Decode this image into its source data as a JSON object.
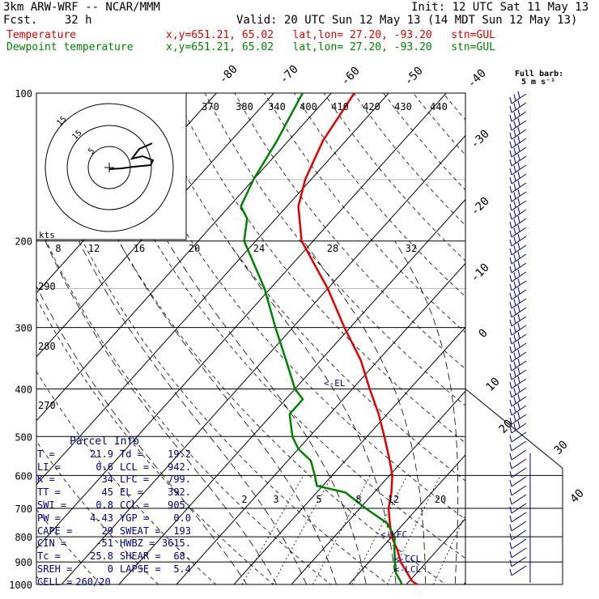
{
  "header": {
    "model": "3km ARW-WRF -- NCAR/MMM",
    "init": "Init: 12 UTC Sat 11 May 13",
    "fcst": "Fcst.    32 h",
    "valid": "Valid: 20 UTC Sun 12 May 13 (14 MDT Sun 12 May 13)",
    "temp_label": "Temperature",
    "temp_loc": "x,y=651.21, 65.02   lat,lon= 27.20, -93.20   stn=GUL",
    "dew_label": "Dewpoint temperature",
    "dew_loc": "x,y=651.21, 65.02   lat,lon= 27.20, -93.20   stn=GUL"
  },
  "colors": {
    "temperature": "#e00000",
    "dewpoint": "#008000",
    "labels": "#000080"
  },
  "parcel": {
    "title": "Parcel Info",
    "rows": [
      {
        "k1": "T",
        "v1": "21.9",
        "k2": "Td",
        "v2": "19.2"
      },
      {
        "k1": "LI",
        "v1": "0.6",
        "k2": "LCL",
        "v2": "942."
      },
      {
        "k1": "K",
        "v1": "34",
        "k2": "LFC",
        "v2": "799."
      },
      {
        "k1": "TT",
        "v1": "45",
        "k2": "EL",
        "v2": "392."
      },
      {
        "k1": "SWI",
        "v1": "0.8",
        "k2": "CCL",
        "v2": "905."
      },
      {
        "k1": "PW",
        "v1": "4.43",
        "k2": "YGP",
        "v2": "0.0"
      },
      {
        "k1": "CAPE",
        "v1": "29",
        "k2": "SWEAT",
        "v2": "193"
      },
      {
        "k1": "CIN",
        "v1": "-51",
        "k2": "HWBZ",
        "v2": "3615."
      },
      {
        "k1": "Tc",
        "v1": "25.8",
        "k2": "SHEAR",
        "v2": "68."
      },
      {
        "k1": "SREH",
        "v1": "0",
        "k2": "LAPSE",
        "v2": "5.4"
      },
      {
        "k1": "CELL",
        "v1": "260/20",
        "k2": "",
        "v2": ""
      }
    ]
  },
  "hodograph": {
    "units": "kts",
    "rings": [
      "5",
      "15",
      "15"
    ]
  },
  "barb_legend": {
    "line1": "Full barb:",
    "line2": "5 m s⁻¹"
  },
  "level_labels": {
    "el": "<-EL",
    "lfc": "<-LFC",
    "ccl": "<-CCL",
    "lcl": "<-LCL"
  },
  "theta_labels": [
    "370",
    "380",
    "340",
    "400",
    "410",
    "420",
    "430",
    "440"
  ],
  "theta_left_labels": [
    "290",
    "280",
    "270"
  ],
  "mixing_top_labels": [
    "8",
    "12",
    "16",
    "20",
    "24",
    "28",
    "32"
  ],
  "mixing_bottom_labels": [
    "2",
    "3",
    "5",
    "8",
    "12",
    "20"
  ],
  "chart_data": {
    "type": "line",
    "title": "",
    "y_axis": "pressure (hPa), log scale",
    "pressure_ticks": [
      100,
      200,
      300,
      400,
      500,
      600,
      700,
      800,
      900,
      1000
    ],
    "isotherm_labels": [
      -80,
      -70,
      -60,
      -50,
      -40,
      -30,
      -20,
      -10,
      0,
      10,
      20,
      30,
      40
    ],
    "series": [
      {
        "name": "Temperature",
        "color": "#e00000",
        "p": [
          1000,
          985,
          950,
          900,
          850,
          800,
          750,
          700,
          650,
          600,
          550,
          500,
          450,
          400,
          350,
          300,
          250,
          200,
          170,
          150,
          125,
          100
        ],
        "t": [
          21.9,
          20.5,
          18.5,
          15.5,
          13,
          10,
          7.5,
          5,
          3,
          0.5,
          -3,
          -7,
          -11.5,
          -17,
          -23,
          -31,
          -40,
          -52,
          -58,
          -61,
          -64,
          -66
        ]
      },
      {
        "name": "Dewpoint temperature",
        "color": "#008000",
        "p": [
          1000,
          985,
          950,
          900,
          850,
          800,
          750,
          700,
          650,
          630,
          600,
          560,
          530,
          500,
          450,
          420,
          400,
          350,
          300,
          250,
          200,
          180,
          170,
          150,
          125,
          100
        ],
        "t": [
          19.2,
          18.5,
          16.5,
          14.5,
          12.5,
          10.5,
          7,
          1,
          -5,
          -11,
          -13,
          -16,
          -20,
          -23,
          -27,
          -27,
          -30,
          -36,
          -43,
          -51,
          -62,
          -65,
          -68,
          -70,
          -72,
          -75
        ]
      }
    ]
  }
}
